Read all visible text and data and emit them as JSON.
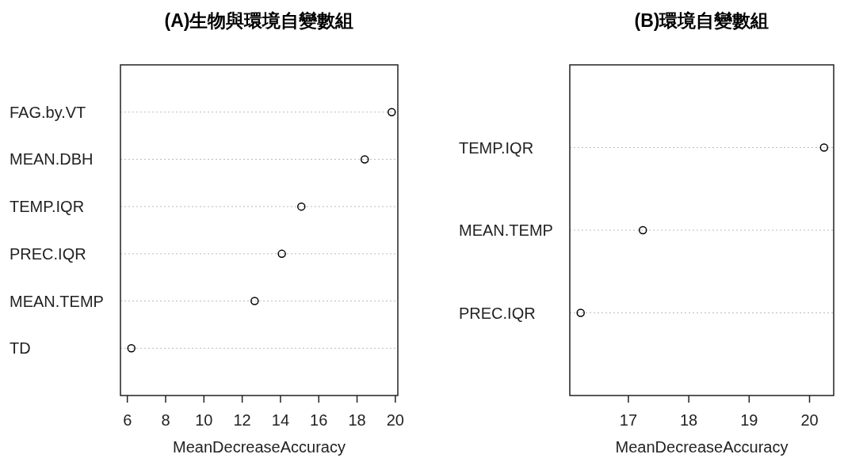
{
  "chart_data": [
    {
      "type": "scatter",
      "orientation": "horizontal",
      "title": "(A)生物與環境自變數組",
      "xlabel": "MeanDecreaseAccuracy",
      "categories": [
        "FAG.by.VT",
        "MEAN.DBH",
        "TEMP.IQR",
        "PREC.IQR",
        "MEAN.TEMP",
        "TD"
      ],
      "values": [
        19.81,
        18.4,
        15.09,
        14.07,
        12.65,
        6.21
      ],
      "color": "#000000",
      "marker": "circle",
      "grid": "y",
      "xlim": [
        5.64,
        20.13
      ],
      "xticks": [
        6,
        8,
        10,
        12,
        14,
        16,
        18,
        20
      ]
    },
    {
      "type": "scatter",
      "orientation": "horizontal",
      "title": "(B)環境自變數組",
      "xlabel": "MeanDecreaseAccuracy",
      "categories": [
        "TEMP.IQR",
        "MEAN.TEMP",
        "PREC.IQR"
      ],
      "values": [
        20.24,
        17.24,
        16.21
      ],
      "color": "#000000",
      "marker": "circle",
      "grid": "y",
      "xlim": [
        16.03,
        20.4
      ],
      "xticks": [
        17,
        18,
        19,
        20
      ]
    }
  ]
}
